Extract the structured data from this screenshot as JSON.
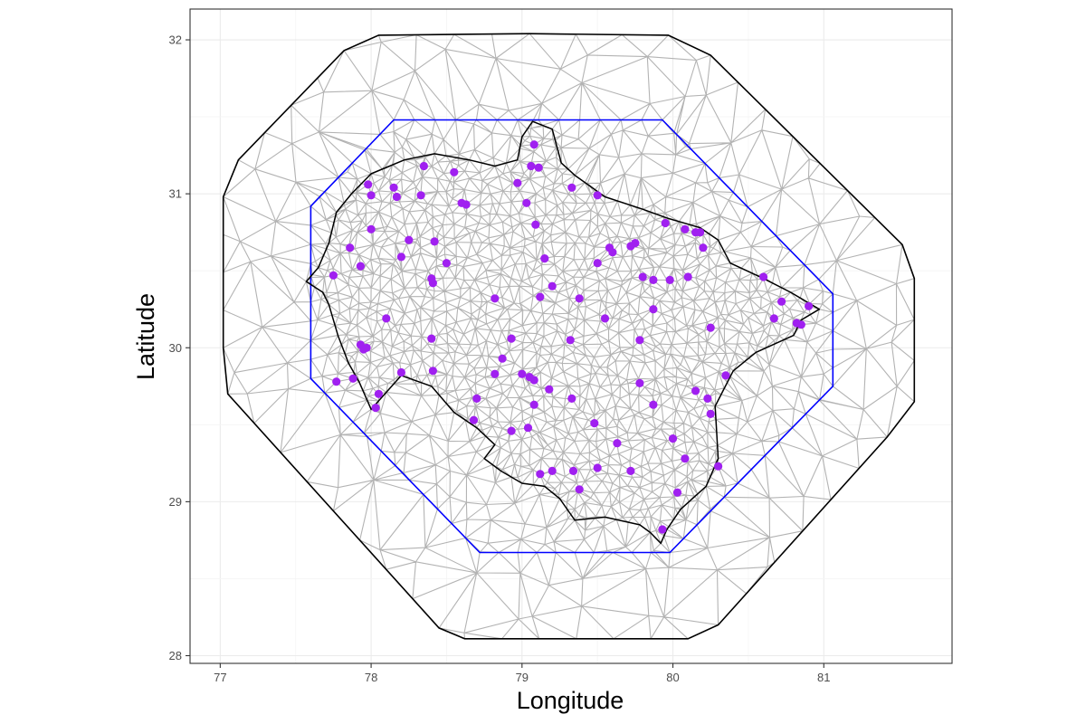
{
  "chart_data": {
    "type": "scatter",
    "title": "",
    "xlabel": "Longitude",
    "ylabel": "Latitude",
    "xlim": [
      76.8,
      81.85
    ],
    "ylim": [
      27.95,
      32.2
    ],
    "x_ticks": [
      77,
      78,
      79,
      80,
      81
    ],
    "y_ticks": [
      28,
      29,
      30,
      31,
      32
    ],
    "x_tick_labels": [
      "77",
      "78",
      "79",
      "80",
      "81"
    ],
    "y_tick_labels": [
      "28",
      "29",
      "30",
      "31",
      "32"
    ],
    "grid": true,
    "legend": "none",
    "colors": {
      "points": "#a020f0",
      "inner_boundary": "#0000ff",
      "outer_boundary": "#000000",
      "region_outline": "#000000",
      "mesh": "#b3b3b3",
      "grid": "#ebebeb",
      "panel_border": "#333333"
    },
    "outer_boundary": [
      [
        78.05,
        32.03
      ],
      [
        79.05,
        32.04
      ],
      [
        79.97,
        32.03
      ],
      [
        80.25,
        31.9
      ],
      [
        81.52,
        30.67
      ],
      [
        81.6,
        30.45
      ],
      [
        81.6,
        29.65
      ],
      [
        81.42,
        29.42
      ],
      [
        80.3,
        28.2
      ],
      [
        80.1,
        28.11
      ],
      [
        78.62,
        28.11
      ],
      [
        78.45,
        28.18
      ],
      [
        77.05,
        29.7
      ],
      [
        77.02,
        30.0
      ],
      [
        77.02,
        30.98
      ],
      [
        77.12,
        31.22
      ],
      [
        77.82,
        31.93
      ]
    ],
    "inner_boundary": [
      [
        78.15,
        31.48
      ],
      [
        79.93,
        31.48
      ],
      [
        81.06,
        30.35
      ],
      [
        81.06,
        29.75
      ],
      [
        79.98,
        28.67
      ],
      [
        78.72,
        28.67
      ],
      [
        77.6,
        29.8
      ],
      [
        77.6,
        30.92
      ]
    ],
    "region_outline": [
      [
        79.07,
        31.47
      ],
      [
        79.2,
        31.42
      ],
      [
        79.26,
        31.2
      ],
      [
        79.35,
        31.12
      ],
      [
        79.55,
        30.98
      ],
      [
        79.8,
        30.9
      ],
      [
        79.97,
        30.84
      ],
      [
        80.18,
        30.78
      ],
      [
        80.3,
        30.7
      ],
      [
        80.38,
        30.55
      ],
      [
        80.6,
        30.45
      ],
      [
        80.78,
        30.36
      ],
      [
        80.97,
        30.25
      ],
      [
        80.85,
        30.18
      ],
      [
        80.8,
        30.08
      ],
      [
        80.55,
        29.97
      ],
      [
        80.4,
        29.85
      ],
      [
        80.28,
        29.62
      ],
      [
        80.3,
        29.28
      ],
      [
        80.22,
        29.1
      ],
      [
        80.05,
        28.95
      ],
      [
        79.96,
        28.82
      ],
      [
        79.92,
        28.73
      ],
      [
        79.85,
        28.8
      ],
      [
        79.78,
        28.85
      ],
      [
        79.55,
        28.9
      ],
      [
        79.35,
        28.88
      ],
      [
        79.25,
        29.02
      ],
      [
        79.15,
        29.1
      ],
      [
        79.0,
        29.12
      ],
      [
        78.86,
        29.2
      ],
      [
        78.75,
        29.28
      ],
      [
        78.82,
        29.37
      ],
      [
        78.7,
        29.48
      ],
      [
        78.55,
        29.58
      ],
      [
        78.4,
        29.75
      ],
      [
        78.2,
        29.82
      ],
      [
        78.0,
        29.6
      ],
      [
        77.92,
        29.78
      ],
      [
        77.85,
        29.9
      ],
      [
        77.78,
        30.08
      ],
      [
        77.72,
        30.28
      ],
      [
        77.68,
        30.36
      ],
      [
        77.57,
        30.43
      ],
      [
        77.65,
        30.52
      ],
      [
        77.72,
        30.68
      ],
      [
        77.77,
        30.88
      ],
      [
        77.87,
        31.0
      ],
      [
        78.0,
        31.13
      ],
      [
        78.22,
        31.22
      ],
      [
        78.42,
        31.26
      ],
      [
        78.65,
        31.22
      ],
      [
        78.82,
        31.18
      ],
      [
        78.97,
        31.22
      ],
      [
        79.0,
        31.37
      ]
    ],
    "points": [
      [
        79.08,
        31.32
      ],
      [
        79.06,
        31.18
      ],
      [
        79.11,
        31.17
      ],
      [
        78.35,
        31.18
      ],
      [
        78.55,
        31.14
      ],
      [
        78.97,
        31.07
      ],
      [
        77.98,
        31.06
      ],
      [
        78.15,
        31.04
      ],
      [
        78.0,
        30.99
      ],
      [
        78.17,
        30.98
      ],
      [
        78.33,
        30.99
      ],
      [
        79.33,
        31.04
      ],
      [
        79.5,
        30.99
      ],
      [
        79.03,
        30.94
      ],
      [
        78.6,
        30.94
      ],
      [
        78.63,
        30.93
      ],
      [
        79.09,
        30.8
      ],
      [
        79.95,
        30.81
      ],
      [
        80.08,
        30.77
      ],
      [
        80.15,
        30.75
      ],
      [
        80.18,
        30.75
      ],
      [
        80.2,
        30.65
      ],
      [
        78.0,
        30.77
      ],
      [
        77.86,
        30.65
      ],
      [
        78.25,
        30.7
      ],
      [
        78.42,
        30.69
      ],
      [
        79.58,
        30.65
      ],
      [
        79.6,
        30.62
      ],
      [
        79.75,
        30.68
      ],
      [
        79.72,
        30.66
      ],
      [
        78.2,
        30.59
      ],
      [
        78.5,
        30.55
      ],
      [
        79.15,
        30.58
      ],
      [
        79.5,
        30.55
      ],
      [
        77.93,
        30.53
      ],
      [
        77.75,
        30.47
      ],
      [
        79.8,
        30.46
      ],
      [
        79.87,
        30.44
      ],
      [
        79.98,
        30.44
      ],
      [
        80.1,
        30.46
      ],
      [
        80.6,
        30.46
      ],
      [
        78.4,
        30.45
      ],
      [
        78.41,
        30.42
      ],
      [
        79.2,
        30.4
      ],
      [
        79.12,
        30.33
      ],
      [
        78.82,
        30.32
      ],
      [
        79.38,
        30.32
      ],
      [
        80.72,
        30.3
      ],
      [
        80.9,
        30.27
      ],
      [
        79.87,
        30.25
      ],
      [
        78.1,
        30.19
      ],
      [
        79.55,
        30.19
      ],
      [
        80.67,
        30.19
      ],
      [
        80.82,
        30.16
      ],
      [
        80.85,
        30.15
      ],
      [
        80.25,
        30.13
      ],
      [
        78.93,
        30.06
      ],
      [
        79.32,
        30.05
      ],
      [
        79.78,
        30.05
      ],
      [
        78.4,
        30.06
      ],
      [
        77.93,
        30.02
      ],
      [
        77.97,
        30.0
      ],
      [
        77.95,
        29.99
      ],
      [
        78.87,
        29.93
      ],
      [
        78.2,
        29.84
      ],
      [
        78.41,
        29.85
      ],
      [
        78.82,
        29.83
      ],
      [
        79.0,
        29.83
      ],
      [
        79.05,
        29.81
      ],
      [
        79.08,
        29.79
      ],
      [
        80.35,
        29.82
      ],
      [
        77.88,
        29.8
      ],
      [
        77.77,
        29.78
      ],
      [
        79.78,
        29.77
      ],
      [
        79.18,
        29.73
      ],
      [
        80.15,
        29.72
      ],
      [
        78.05,
        29.7
      ],
      [
        78.7,
        29.67
      ],
      [
        79.33,
        29.67
      ],
      [
        80.23,
        29.67
      ],
      [
        79.08,
        29.63
      ],
      [
        79.87,
        29.63
      ],
      [
        78.03,
        29.61
      ],
      [
        80.25,
        29.57
      ],
      [
        78.68,
        29.53
      ],
      [
        79.48,
        29.51
      ],
      [
        79.04,
        29.48
      ],
      [
        78.93,
        29.46
      ],
      [
        80.0,
        29.41
      ],
      [
        79.63,
        29.38
      ],
      [
        80.08,
        29.28
      ],
      [
        80.3,
        29.23
      ],
      [
        79.12,
        29.18
      ],
      [
        79.2,
        29.2
      ],
      [
        79.34,
        29.2
      ],
      [
        79.5,
        29.22
      ],
      [
        79.72,
        29.2
      ],
      [
        79.38,
        29.08
      ],
      [
        80.03,
        29.06
      ],
      [
        79.93,
        28.82
      ]
    ]
  }
}
